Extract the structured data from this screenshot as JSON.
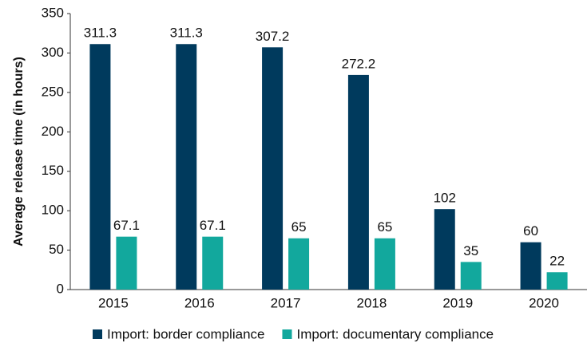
{
  "chart_data": {
    "type": "bar",
    "ylabel": "Average release time (in hours)",
    "categories": [
      "2015",
      "2016",
      "2017",
      "2018",
      "2019",
      "2020"
    ],
    "series": [
      {
        "name": "Import: border compliance",
        "color": "#003a5d",
        "values": [
          311.3,
          311.3,
          307.2,
          272.2,
          102,
          60
        ]
      },
      {
        "name": "Import: documentary compliance",
        "color": "#12a89d",
        "values": [
          67.1,
          67.1,
          65,
          65,
          35,
          22
        ]
      }
    ],
    "ylim": [
      0,
      350
    ],
    "yticks": [
      0,
      50,
      100,
      150,
      200,
      250,
      300,
      350
    ],
    "grid": false
  }
}
